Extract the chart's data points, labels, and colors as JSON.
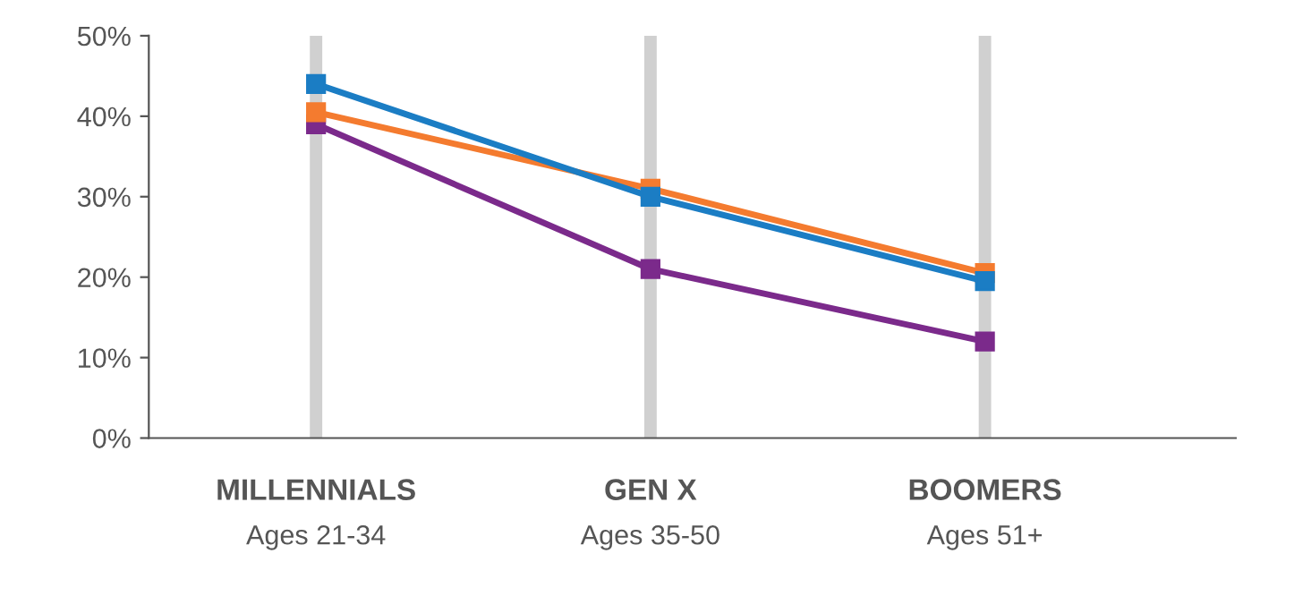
{
  "chart_data": {
    "type": "line",
    "categories": [
      "MILLENNIALS\nAges 21-34",
      "GEN X\nAges 35-50",
      "BOOMERS\nAges 51+"
    ],
    "series": [
      {
        "color": "#7b2a8b",
        "values": [
          39,
          21,
          12
        ]
      },
      {
        "color": "#f47b2f",
        "values": [
          40.5,
          31,
          20.5
        ]
      },
      {
        "color": "#1b7dc4",
        "values": [
          44,
          30,
          19.5
        ]
      }
    ],
    "ylim": [
      0,
      50
    ],
    "yticks": [
      {
        "value": 0,
        "label": "0%"
      },
      {
        "value": 10,
        "label": "10%"
      },
      {
        "value": 20,
        "label": "20%"
      },
      {
        "value": 30,
        "label": "30%"
      },
      {
        "value": 40,
        "label": "40%"
      },
      {
        "value": 50,
        "label": "50%"
      }
    ],
    "grid": "x",
    "marker": "square",
    "line_style": "solid"
  }
}
